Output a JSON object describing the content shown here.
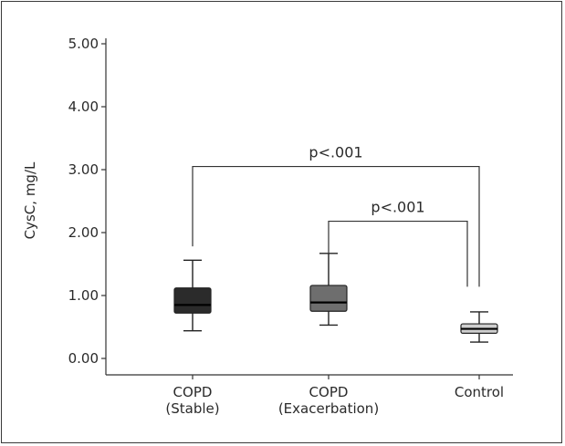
{
  "chart_data": {
    "type": "boxplot",
    "ylabel": "CysC, mg/L",
    "ylim": [
      0,
      5
    ],
    "yticks": [
      "0.00",
      "1.00",
      "2.00",
      "3.00",
      "4.00",
      "5.00"
    ],
    "grid": false,
    "categories": [
      {
        "lines": [
          "COPD",
          "(Stable)"
        ]
      },
      {
        "lines": [
          "COPD",
          "(Exacerbation)"
        ]
      },
      {
        "lines": [
          "Control"
        ]
      }
    ],
    "boxes": [
      {
        "whisker_low": 0.44,
        "q1": 0.72,
        "median": 0.85,
        "q3": 1.12,
        "whisker_high": 1.56,
        "color": "#2b2b2b"
      },
      {
        "whisker_low": 0.53,
        "q1": 0.75,
        "median": 0.89,
        "q3": 1.16,
        "whisker_high": 1.67,
        "color": "#6e6e6e"
      },
      {
        "whisker_low": 0.26,
        "q1": 0.4,
        "median": 0.47,
        "q3": 0.55,
        "whisker_high": 0.74,
        "color": "#cfcfcf"
      }
    ],
    "annotations": [
      {
        "text": "p<.001",
        "from": 0,
        "to": 2,
        "y": 3.05,
        "left_drop_to": 1.78,
        "right_drop_to": 1.14
      },
      {
        "text": "p<.001",
        "from": 1,
        "to": 2,
        "y": 2.18,
        "left_drop_to": 1.68,
        "right_drop_to": 1.14
      }
    ]
  }
}
